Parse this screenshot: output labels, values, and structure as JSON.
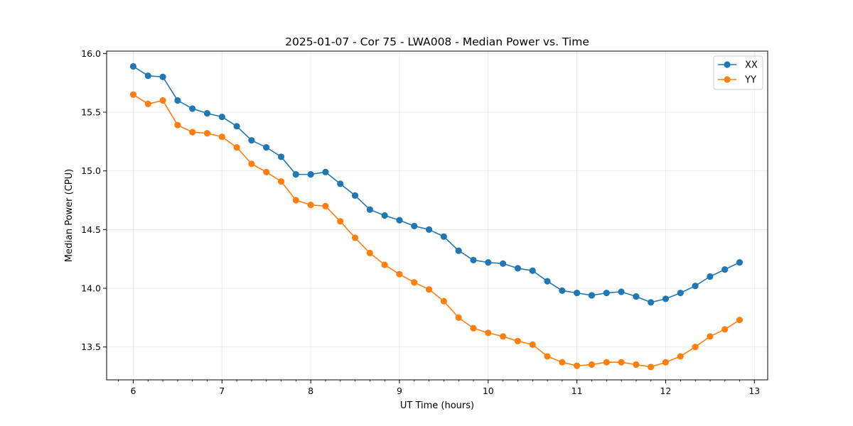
{
  "chart_data": {
    "type": "line",
    "title": "2025-01-07 - Cor 75 - LWA008 - Median Power vs. Time",
    "xlabel": "UT Time (hours)",
    "ylabel": "Median Power (CPU)",
    "xlim": [
      5.7,
      13.15
    ],
    "ylim": [
      13.22,
      16.02
    ],
    "xticks": [
      6,
      7,
      8,
      9,
      10,
      11,
      12,
      13
    ],
    "xtick_labels": [
      "6",
      "7",
      "8",
      "9",
      "10",
      "11",
      "12",
      "13"
    ],
    "xminor_step": 0.1667,
    "yticks": [
      13.5,
      14.0,
      14.5,
      15.0,
      15.5,
      16.0
    ],
    "ytick_labels": [
      "13.5",
      "14.0",
      "14.5",
      "15.0",
      "15.5",
      "16.0"
    ],
    "grid": true,
    "legend_position": "top-right",
    "x": [
      6.0,
      6.1667,
      6.3333,
      6.5,
      6.6667,
      6.8333,
      7.0,
      7.1667,
      7.3333,
      7.5,
      7.6667,
      7.8333,
      8.0,
      8.1667,
      8.3333,
      8.5,
      8.6667,
      8.8333,
      9.0,
      9.1667,
      9.3333,
      9.5,
      9.6667,
      9.8333,
      10.0,
      10.1667,
      10.3333,
      10.5,
      10.6667,
      10.8333,
      11.0,
      11.1667,
      11.3333,
      11.5,
      11.6667,
      11.8333,
      12.0,
      12.1667,
      12.3333,
      12.5,
      12.6667,
      12.8333
    ],
    "series": [
      {
        "name": "XX",
        "color": "#1f77b4",
        "values": [
          15.89,
          15.81,
          15.8,
          15.6,
          15.53,
          15.49,
          15.46,
          15.38,
          15.26,
          15.2,
          15.12,
          14.97,
          14.97,
          14.99,
          14.89,
          14.79,
          14.67,
          14.62,
          14.58,
          14.53,
          14.5,
          14.44,
          14.32,
          14.24,
          14.22,
          14.21,
          14.17,
          14.15,
          14.06,
          13.98,
          13.96,
          13.94,
          13.96,
          13.97,
          13.93,
          13.88,
          13.91,
          13.96,
          14.02,
          14.1,
          14.16,
          14.22
        ]
      },
      {
        "name": "YY",
        "color": "#ff7f0e",
        "values": [
          15.65,
          15.57,
          15.6,
          15.39,
          15.33,
          15.32,
          15.29,
          15.2,
          15.06,
          14.99,
          14.91,
          14.75,
          14.71,
          14.7,
          14.57,
          14.43,
          14.3,
          14.2,
          14.12,
          14.05,
          13.99,
          13.89,
          13.75,
          13.66,
          13.62,
          13.59,
          13.55,
          13.52,
          13.42,
          13.37,
          13.34,
          13.35,
          13.37,
          13.37,
          13.35,
          13.33,
          13.37,
          13.42,
          13.5,
          13.59,
          13.65,
          13.73
        ]
      }
    ]
  }
}
